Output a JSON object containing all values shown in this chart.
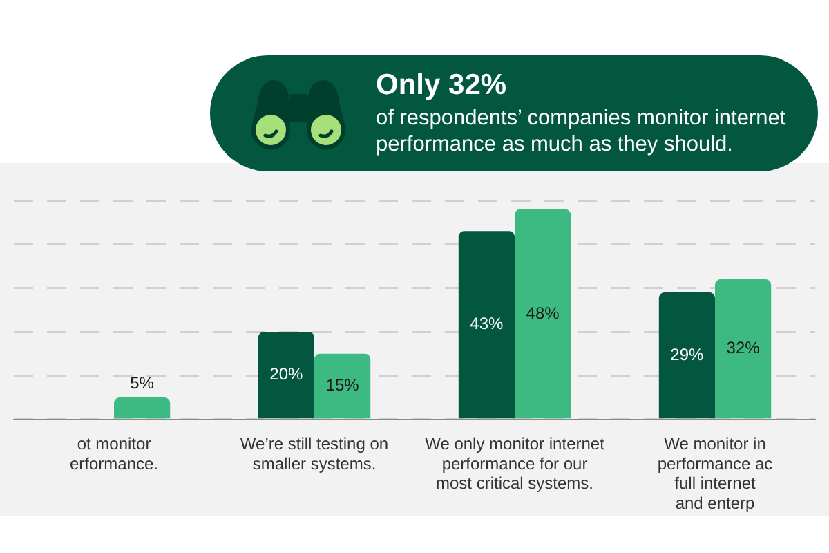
{
  "chart_data": {
    "type": "bar",
    "title": "Only 32%",
    "subtitle": "of respondents’ companies monitor internet performance as much as they should.",
    "categories": [
      "ot monitor\nerformance.",
      "We’re still testing on\nsmaller systems.",
      "We only monitor internet\nperformance for our\nmost critical systems.",
      "We monitor in\nperformance ac\nfull internet\nand enterp"
    ],
    "series": [
      {
        "color": "#03573f",
        "values": [
          null,
          20,
          43,
          29
        ],
        "value_labels": [
          null,
          "20%",
          "43%",
          "29%"
        ]
      },
      {
        "color": "#3dba82",
        "values": [
          5,
          15,
          48,
          32
        ],
        "value_labels": [
          "5%",
          "15%",
          "48%",
          "32%"
        ]
      }
    ],
    "grid": "y",
    "tick_labels": "x"
  }
}
